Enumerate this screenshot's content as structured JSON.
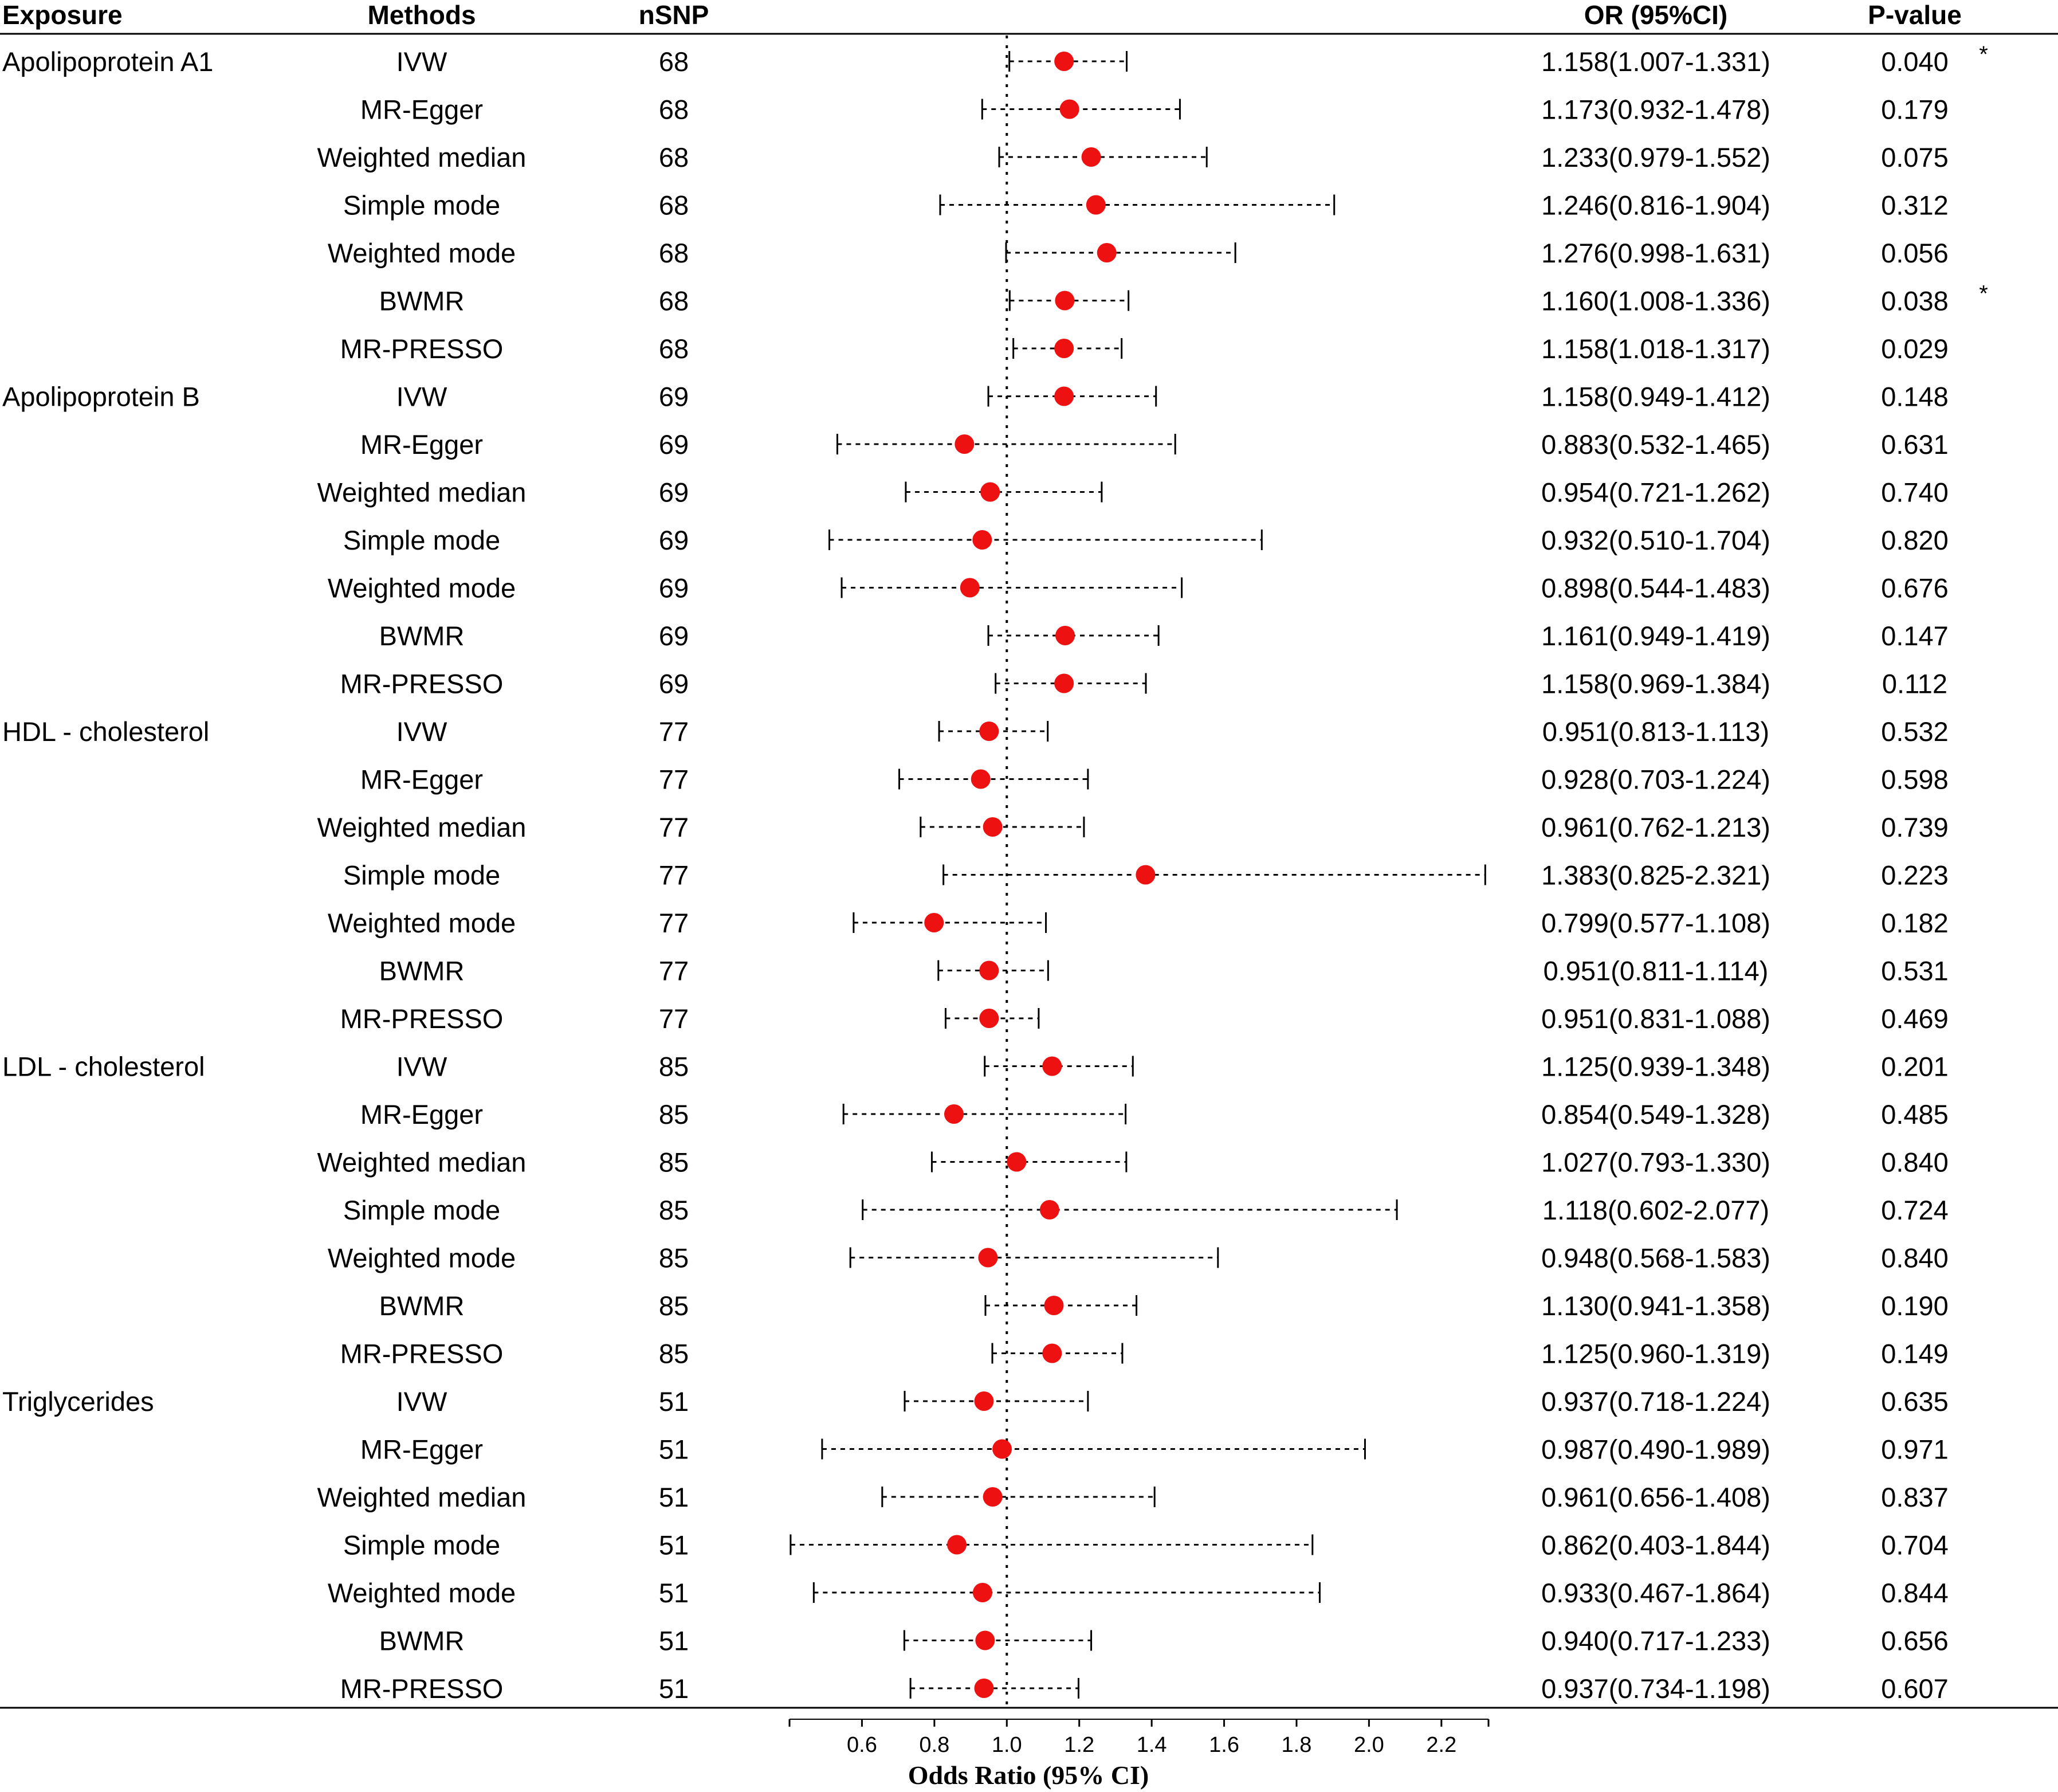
{
  "chart_data": {
    "type": "forest",
    "headers": {
      "exposure": "Exposure",
      "methods": "Methods",
      "nsnp": "nSNP",
      "or_ci": "OR (95%CI)",
      "pvalue": "P-value"
    },
    "xlabel": "Odds Ratio (95% CI)",
    "xlim": [
      0.4,
      2.33
    ],
    "ticks": [
      0.6,
      0.8,
      1.0,
      1.2,
      1.4,
      1.6,
      1.8,
      2.0,
      2.2
    ],
    "tick_labels": [
      "0.6",
      "0.8",
      "1.0",
      "1.2",
      "1.4",
      "1.6",
      "1.8",
      "2.0",
      "2.2"
    ],
    "reference_line": 1.0,
    "colors": {
      "point": "#ee1111",
      "line": "#000000"
    },
    "rows": [
      {
        "exposure": "Apolipoprotein A1",
        "method": "IVW",
        "nsnp": "68",
        "or": 1.158,
        "lo": 1.007,
        "hi": 1.331,
        "or_text": "1.158(1.007-1.331)",
        "p": "0.040",
        "star": "*"
      },
      {
        "exposure": "",
        "method": "MR-Egger",
        "nsnp": "68",
        "or": 1.173,
        "lo": 0.932,
        "hi": 1.478,
        "or_text": "1.173(0.932-1.478)",
        "p": "0.179",
        "star": ""
      },
      {
        "exposure": "",
        "method": "Weighted median",
        "nsnp": "68",
        "or": 1.233,
        "lo": 0.979,
        "hi": 1.552,
        "or_text": "1.233(0.979-1.552)",
        "p": "0.075",
        "star": ""
      },
      {
        "exposure": "",
        "method": "Simple mode",
        "nsnp": "68",
        "or": 1.246,
        "lo": 0.816,
        "hi": 1.904,
        "or_text": "1.246(0.816-1.904)",
        "p": "0.312",
        "star": ""
      },
      {
        "exposure": "",
        "method": "Weighted mode",
        "nsnp": "68",
        "or": 1.276,
        "lo": 0.998,
        "hi": 1.631,
        "or_text": "1.276(0.998-1.631)",
        "p": "0.056",
        "star": ""
      },
      {
        "exposure": "",
        "method": "BWMR",
        "nsnp": "68",
        "or": 1.16,
        "lo": 1.008,
        "hi": 1.336,
        "or_text": "1.160(1.008-1.336)",
        "p": "0.038",
        "star": "*"
      },
      {
        "exposure": "",
        "method": "MR-PRESSO",
        "nsnp": "68",
        "or": 1.158,
        "lo": 1.018,
        "hi": 1.317,
        "or_text": "1.158(1.018-1.317)",
        "p": "0.029",
        "star": ""
      },
      {
        "exposure": "Apolipoprotein B",
        "method": "IVW",
        "nsnp": "69",
        "or": 1.158,
        "lo": 0.949,
        "hi": 1.412,
        "or_text": "1.158(0.949-1.412)",
        "p": "0.148",
        "star": ""
      },
      {
        "exposure": "",
        "method": "MR-Egger",
        "nsnp": "69",
        "or": 0.883,
        "lo": 0.532,
        "hi": 1.465,
        "or_text": "0.883(0.532-1.465)",
        "p": "0.631",
        "star": ""
      },
      {
        "exposure": "",
        "method": "Weighted median",
        "nsnp": "69",
        "or": 0.954,
        "lo": 0.721,
        "hi": 1.262,
        "or_text": "0.954(0.721-1.262)",
        "p": "0.740",
        "star": ""
      },
      {
        "exposure": "",
        "method": "Simple mode",
        "nsnp": "69",
        "or": 0.932,
        "lo": 0.51,
        "hi": 1.704,
        "or_text": "0.932(0.510-1.704)",
        "p": "0.820",
        "star": ""
      },
      {
        "exposure": "",
        "method": "Weighted mode",
        "nsnp": "69",
        "or": 0.898,
        "lo": 0.544,
        "hi": 1.483,
        "or_text": "0.898(0.544-1.483)",
        "p": "0.676",
        "star": ""
      },
      {
        "exposure": "",
        "method": "BWMR",
        "nsnp": "69",
        "or": 1.161,
        "lo": 0.949,
        "hi": 1.419,
        "or_text": "1.161(0.949-1.419)",
        "p": "0.147",
        "star": ""
      },
      {
        "exposure": "",
        "method": "MR-PRESSO",
        "nsnp": "69",
        "or": 1.158,
        "lo": 0.969,
        "hi": 1.384,
        "or_text": "1.158(0.969-1.384)",
        "p": "0.112",
        "star": ""
      },
      {
        "exposure": "HDL - cholesterol",
        "method": "IVW",
        "nsnp": "77",
        "or": 0.951,
        "lo": 0.813,
        "hi": 1.113,
        "or_text": "0.951(0.813-1.113)",
        "p": "0.532",
        "star": ""
      },
      {
        "exposure": "",
        "method": "MR-Egger",
        "nsnp": "77",
        "or": 0.928,
        "lo": 0.703,
        "hi": 1.224,
        "or_text": "0.928(0.703-1.224)",
        "p": "0.598",
        "star": ""
      },
      {
        "exposure": "",
        "method": "Weighted median",
        "nsnp": "77",
        "or": 0.961,
        "lo": 0.762,
        "hi": 1.213,
        "or_text": "0.961(0.762-1.213)",
        "p": "0.739",
        "star": ""
      },
      {
        "exposure": "",
        "method": "Simple mode",
        "nsnp": "77",
        "or": 1.383,
        "lo": 0.825,
        "hi": 2.321,
        "or_text": "1.383(0.825-2.321)",
        "p": "0.223",
        "star": ""
      },
      {
        "exposure": "",
        "method": "Weighted mode",
        "nsnp": "77",
        "or": 0.799,
        "lo": 0.577,
        "hi": 1.108,
        "or_text": "0.799(0.577-1.108)",
        "p": "0.182",
        "star": ""
      },
      {
        "exposure": "",
        "method": "BWMR",
        "nsnp": "77",
        "or": 0.951,
        "lo": 0.811,
        "hi": 1.114,
        "or_text": "0.951(0.811-1.114)",
        "p": "0.531",
        "star": ""
      },
      {
        "exposure": "",
        "method": "MR-PRESSO",
        "nsnp": "77",
        "or": 0.951,
        "lo": 0.831,
        "hi": 1.088,
        "or_text": "0.951(0.831-1.088)",
        "p": "0.469",
        "star": ""
      },
      {
        "exposure": "LDL - cholesterol",
        "method": "IVW",
        "nsnp": "85",
        "or": 1.125,
        "lo": 0.939,
        "hi": 1.348,
        "or_text": "1.125(0.939-1.348)",
        "p": "0.201",
        "star": ""
      },
      {
        "exposure": "",
        "method": "MR-Egger",
        "nsnp": "85",
        "or": 0.854,
        "lo": 0.549,
        "hi": 1.328,
        "or_text": "0.854(0.549-1.328)",
        "p": "0.485",
        "star": ""
      },
      {
        "exposure": "",
        "method": "Weighted median",
        "nsnp": "85",
        "or": 1.027,
        "lo": 0.793,
        "hi": 1.33,
        "or_text": "1.027(0.793-1.330)",
        "p": "0.840",
        "star": ""
      },
      {
        "exposure": "",
        "method": "Simple mode",
        "nsnp": "85",
        "or": 1.118,
        "lo": 0.602,
        "hi": 2.077,
        "or_text": "1.118(0.602-2.077)",
        "p": "0.724",
        "star": ""
      },
      {
        "exposure": "",
        "method": "Weighted mode",
        "nsnp": "85",
        "or": 0.948,
        "lo": 0.568,
        "hi": 1.583,
        "or_text": "0.948(0.568-1.583)",
        "p": "0.840",
        "star": ""
      },
      {
        "exposure": "",
        "method": "BWMR",
        "nsnp": "85",
        "or": 1.13,
        "lo": 0.941,
        "hi": 1.358,
        "or_text": "1.130(0.941-1.358)",
        "p": "0.190",
        "star": ""
      },
      {
        "exposure": "",
        "method": "MR-PRESSO",
        "nsnp": "85",
        "or": 1.125,
        "lo": 0.96,
        "hi": 1.319,
        "or_text": "1.125(0.960-1.319)",
        "p": "0.149",
        "star": ""
      },
      {
        "exposure": "Triglycerides",
        "method": "IVW",
        "nsnp": "51",
        "or": 0.937,
        "lo": 0.718,
        "hi": 1.224,
        "or_text": "0.937(0.718-1.224)",
        "p": "0.635",
        "star": ""
      },
      {
        "exposure": "",
        "method": "MR-Egger",
        "nsnp": "51",
        "or": 0.987,
        "lo": 0.49,
        "hi": 1.989,
        "or_text": "0.987(0.490-1.989)",
        "p": "0.971",
        "star": ""
      },
      {
        "exposure": "",
        "method": "Weighted median",
        "nsnp": "51",
        "or": 0.961,
        "lo": 0.656,
        "hi": 1.408,
        "or_text": "0.961(0.656-1.408)",
        "p": "0.837",
        "star": ""
      },
      {
        "exposure": "",
        "method": "Simple mode",
        "nsnp": "51",
        "or": 0.862,
        "lo": 0.403,
        "hi": 1.844,
        "or_text": "0.862(0.403-1.844)",
        "p": "0.704",
        "star": ""
      },
      {
        "exposure": "",
        "method": "Weighted mode",
        "nsnp": "51",
        "or": 0.933,
        "lo": 0.467,
        "hi": 1.864,
        "or_text": "0.933(0.467-1.864)",
        "p": "0.844",
        "star": ""
      },
      {
        "exposure": "",
        "method": "BWMR",
        "nsnp": "51",
        "or": 0.94,
        "lo": 0.717,
        "hi": 1.233,
        "or_text": "0.940(0.717-1.233)",
        "p": "0.656",
        "star": ""
      },
      {
        "exposure": "",
        "method": "MR-PRESSO",
        "nsnp": "51",
        "or": 0.937,
        "lo": 0.734,
        "hi": 1.198,
        "or_text": "0.937(0.734-1.198)",
        "p": "0.607",
        "star": ""
      }
    ]
  }
}
